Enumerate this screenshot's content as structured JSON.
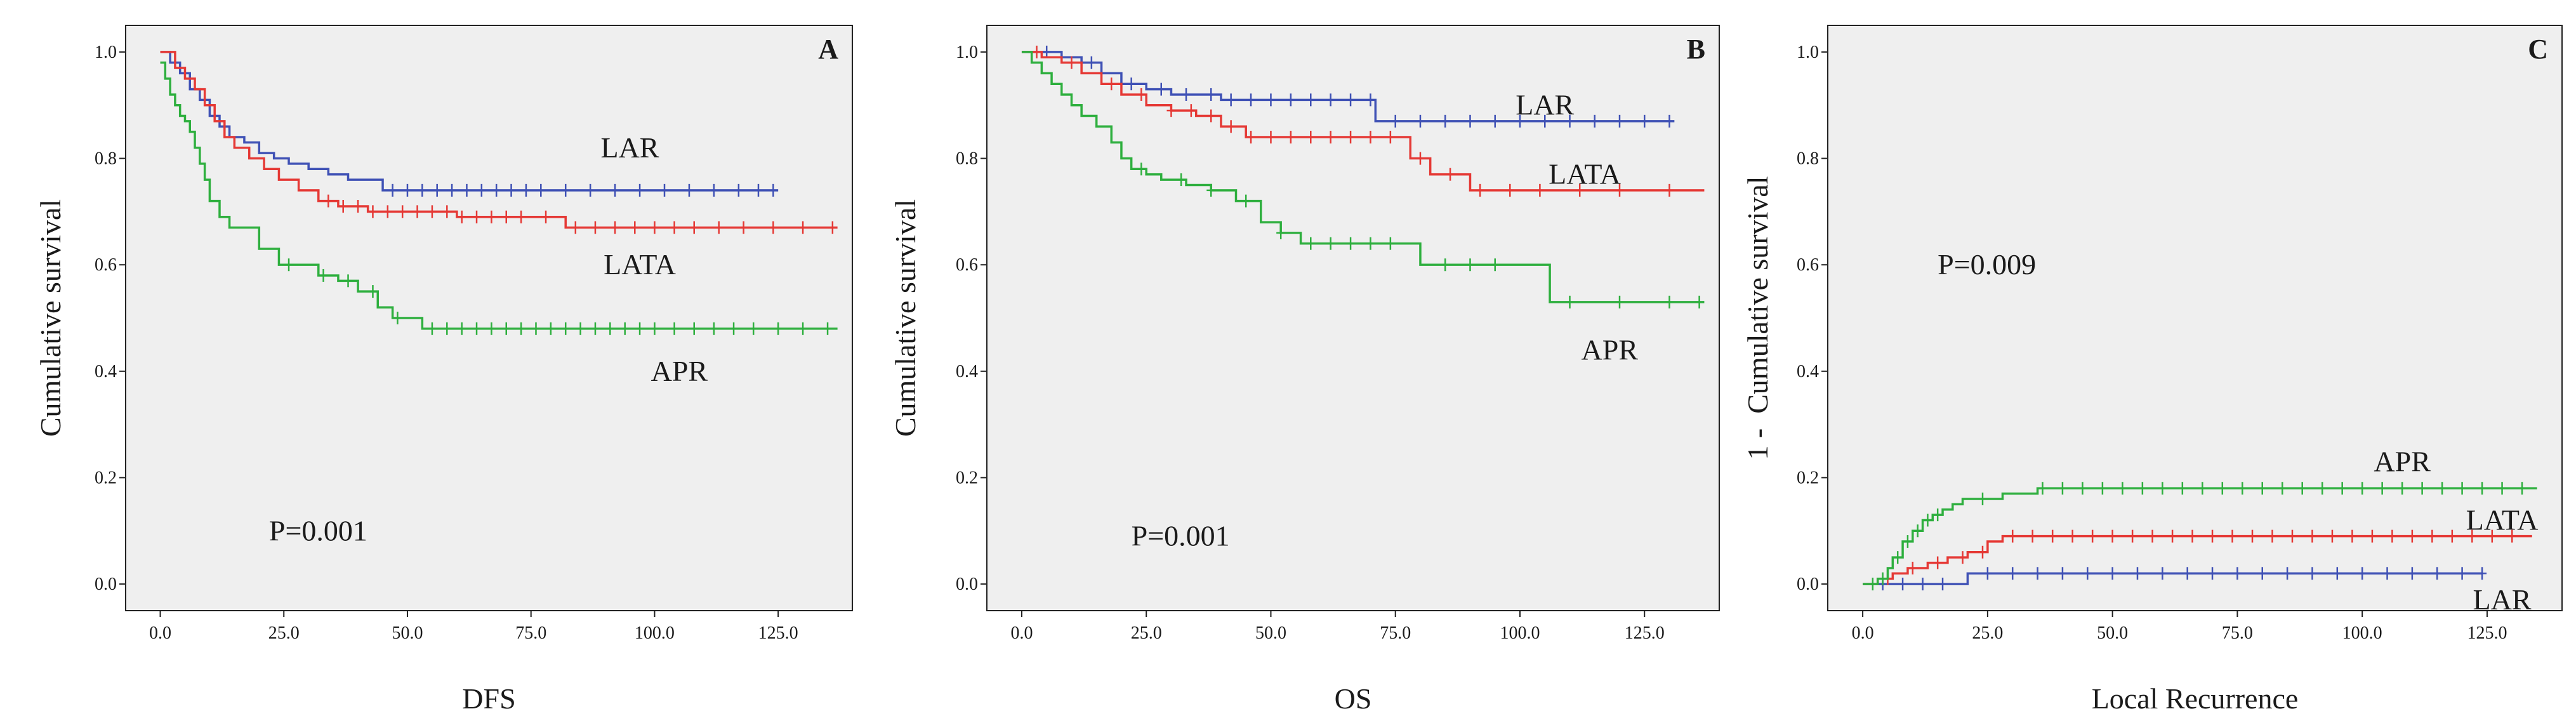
{
  "chart_data": [
    {
      "type": "line",
      "subtype": "kaplan-meier",
      "panel_label": "A",
      "xlabel": "DFS",
      "ylabel": "Cumulative survival",
      "xlim": [
        -7,
        140
      ],
      "ylim": [
        -0.05,
        1.05
      ],
      "x_ticks": [
        0,
        25,
        50,
        75,
        100,
        125
      ],
      "x_tick_labels": [
        "0.0",
        "25.0",
        "50.0",
        "75.0",
        "100.0",
        "125.0"
      ],
      "y_ticks": [
        0,
        0.2,
        0.4,
        0.6,
        0.8,
        1.0
      ],
      "y_tick_labels": [
        "0.0",
        "0.2",
        "0.4",
        "0.6",
        "0.8",
        "1.0"
      ],
      "annotation": {
        "text": "P=0.001",
        "x": 22,
        "y": 0.1
      },
      "series": [
        {
          "name": "LAR",
          "color": "#3f51b5",
          "label_pos": [
            95,
            0.82
          ],
          "x": [
            0,
            2,
            4,
            6,
            8,
            10,
            12,
            14,
            17,
            20,
            23,
            26,
            30,
            34,
            38,
            45,
            125
          ],
          "y": [
            1.0,
            0.98,
            0.96,
            0.93,
            0.91,
            0.88,
            0.86,
            0.84,
            0.83,
            0.81,
            0.8,
            0.79,
            0.78,
            0.77,
            0.76,
            0.74,
            0.74
          ],
          "censor_x": [
            47,
            50,
            53,
            56,
            59,
            62,
            65,
            68,
            71,
            74,
            77,
            82,
            87,
            92,
            97,
            102,
            107,
            112,
            117,
            121,
            124
          ]
        },
        {
          "name": "LATA",
          "color": "#e53935",
          "label_pos": [
            97,
            0.6
          ],
          "x": [
            0,
            3,
            5,
            7,
            9,
            11,
            13,
            15,
            18,
            21,
            24,
            28,
            32,
            36,
            42,
            50,
            60,
            75,
            82,
            137
          ],
          "y": [
            1.0,
            0.97,
            0.95,
            0.93,
            0.9,
            0.87,
            0.84,
            0.82,
            0.8,
            0.78,
            0.76,
            0.74,
            0.72,
            0.71,
            0.7,
            0.7,
            0.69,
            0.69,
            0.67,
            0.67
          ],
          "censor_x": [
            34,
            37,
            40,
            43,
            46,
            49,
            52,
            55,
            58,
            61,
            64,
            67,
            70,
            73,
            78,
            84,
            88,
            92,
            96,
            100,
            104,
            108,
            113,
            118,
            124,
            130,
            136
          ]
        },
        {
          "name": "APR",
          "color": "#2eaf3e",
          "label_pos": [
            105,
            0.4
          ],
          "x": [
            0,
            1,
            2,
            3,
            4,
            5,
            6,
            7,
            8,
            9,
            10,
            12,
            14,
            17,
            20,
            24,
            28,
            32,
            36,
            40,
            44,
            47,
            50,
            53,
            137
          ],
          "y": [
            0.98,
            0.95,
            0.92,
            0.9,
            0.88,
            0.87,
            0.85,
            0.82,
            0.79,
            0.76,
            0.72,
            0.69,
            0.67,
            0.67,
            0.63,
            0.6,
            0.6,
            0.58,
            0.57,
            0.55,
            0.52,
            0.5,
            0.5,
            0.48,
            0.48
          ],
          "censor_x": [
            26,
            33,
            38,
            43,
            48,
            55,
            58,
            61,
            64,
            67,
            70,
            73,
            76,
            79,
            82,
            85,
            88,
            91,
            94,
            97,
            100,
            104,
            108,
            112,
            116,
            120,
            125,
            130,
            135
          ]
        }
      ]
    },
    {
      "type": "line",
      "subtype": "kaplan-meier",
      "panel_label": "B",
      "xlabel": "OS",
      "ylabel": "Cumulative survival",
      "xlim": [
        -7,
        140
      ],
      "ylim": [
        -0.05,
        1.05
      ],
      "x_ticks": [
        0,
        25,
        50,
        75,
        100,
        125
      ],
      "x_tick_labels": [
        "0.0",
        "25.0",
        "50.0",
        "75.0",
        "100.0",
        "125.0"
      ],
      "y_ticks": [
        0,
        0.2,
        0.4,
        0.6,
        0.8,
        1.0
      ],
      "y_tick_labels": [
        "0.0",
        "0.2",
        "0.4",
        "0.6",
        "0.8",
        "1.0"
      ],
      "annotation": {
        "text": "P=0.001",
        "x": 22,
        "y": 0.09
      },
      "series": [
        {
          "name": "LAR",
          "color": "#3f51b5",
          "label_pos": [
            105,
            0.9
          ],
          "x": [
            0,
            8,
            12,
            16,
            20,
            25,
            30,
            35,
            40,
            70,
            71,
            131
          ],
          "y": [
            1.0,
            0.99,
            0.98,
            0.96,
            0.94,
            0.93,
            0.92,
            0.92,
            0.91,
            0.91,
            0.87,
            0.87
          ],
          "censor_x": [
            5,
            14,
            22,
            28,
            33,
            38,
            42,
            46,
            50,
            54,
            58,
            62,
            66,
            70,
            75,
            80,
            85,
            90,
            95,
            100,
            105,
            110,
            115,
            120,
            125,
            130
          ]
        },
        {
          "name": "LATA",
          "color": "#e53935",
          "label_pos": [
            113,
            0.77
          ],
          "x": [
            0,
            4,
            8,
            12,
            16,
            20,
            25,
            30,
            35,
            40,
            45,
            75,
            78,
            82,
            90,
            137
          ],
          "y": [
            1.0,
            0.99,
            0.98,
            0.96,
            0.94,
            0.92,
            0.9,
            0.89,
            0.88,
            0.86,
            0.84,
            0.84,
            0.8,
            0.77,
            0.74,
            0.74
          ],
          "censor_x": [
            3,
            10,
            18,
            24,
            30,
            34,
            38,
            42,
            46,
            50,
            54,
            58,
            62,
            66,
            70,
            74,
            80,
            86,
            92,
            98,
            104,
            112,
            120,
            130
          ]
        },
        {
          "name": "APR",
          "color": "#2eaf3e",
          "label_pos": [
            118,
            0.44
          ],
          "x": [
            0,
            2,
            4,
            6,
            8,
            10,
            12,
            15,
            18,
            20,
            22,
            25,
            28,
            33,
            38,
            43,
            48,
            52,
            56,
            80,
            106,
            137
          ],
          "y": [
            1.0,
            0.98,
            0.96,
            0.94,
            0.92,
            0.9,
            0.88,
            0.86,
            0.83,
            0.8,
            0.78,
            0.77,
            0.76,
            0.75,
            0.74,
            0.72,
            0.68,
            0.66,
            0.64,
            0.6,
            0.53,
            0.53
          ],
          "censor_x": [
            24,
            32,
            38,
            45,
            52,
            58,
            62,
            66,
            70,
            74,
            85,
            90,
            95,
            110,
            120,
            130,
            136
          ]
        }
      ]
    },
    {
      "type": "line",
      "subtype": "kaplan-meier",
      "panel_label": "C",
      "xlabel": "Local Recurrence",
      "ylabel": "1 -  Cumulative survival",
      "xlim": [
        -7,
        140
      ],
      "ylim": [
        -0.05,
        1.05
      ],
      "x_ticks": [
        0,
        25,
        50,
        75,
        100,
        125
      ],
      "x_tick_labels": [
        "0.0",
        "25.0",
        "50.0",
        "75.0",
        "100.0",
        "125.0"
      ],
      "y_ticks": [
        0,
        0.2,
        0.4,
        0.6,
        0.8,
        1.0
      ],
      "y_tick_labels": [
        "0.0",
        "0.2",
        "0.4",
        "0.6",
        "0.8",
        "1.0"
      ],
      "annotation": {
        "text": "P=0.009",
        "x": 15,
        "y": 0.6
      },
      "series": [
        {
          "name": "LAR",
          "color": "#3f51b5",
          "label_pos": [
            128,
            -0.03
          ],
          "x": [
            0,
            20,
            21,
            124
          ],
          "y": [
            0.0,
            0.0,
            0.02,
            0.02
          ],
          "censor_x": [
            4,
            8,
            12,
            16,
            25,
            30,
            35,
            40,
            45,
            50,
            55,
            60,
            65,
            70,
            75,
            80,
            85,
            90,
            95,
            100,
            105,
            110,
            115,
            120,
            124
          ]
        },
        {
          "name": "LATA",
          "color": "#e53935",
          "label_pos": [
            128,
            0.12
          ],
          "x": [
            0,
            3,
            6,
            9,
            13,
            17,
            21,
            25,
            28,
            134
          ],
          "y": [
            0.0,
            0.01,
            0.02,
            0.03,
            0.04,
            0.05,
            0.06,
            0.08,
            0.09,
            0.09
          ],
          "censor_x": [
            5,
            10,
            15,
            20,
            24,
            30,
            34,
            38,
            42,
            46,
            50,
            54,
            58,
            62,
            66,
            70,
            74,
            78,
            82,
            86,
            90,
            94,
            98,
            102,
            106,
            110,
            114,
            118,
            122,
            126,
            130
          ]
        },
        {
          "name": "APR",
          "color": "#2eaf3e",
          "label_pos": [
            108,
            0.23
          ],
          "x": [
            0,
            3,
            5,
            6,
            8,
            10,
            12,
            14,
            16,
            18,
            20,
            25,
            28,
            32,
            35,
            135
          ],
          "y": [
            0.0,
            0.01,
            0.03,
            0.05,
            0.08,
            0.1,
            0.12,
            0.13,
            0.14,
            0.15,
            0.16,
            0.16,
            0.17,
            0.17,
            0.18,
            0.18
          ],
          "censor_x": [
            2,
            4,
            7,
            9,
            11,
            13,
            15,
            24,
            36,
            40,
            44,
            48,
            52,
            56,
            60,
            64,
            68,
            72,
            76,
            80,
            84,
            88,
            92,
            96,
            100,
            104,
            108,
            112,
            116,
            120,
            124,
            128,
            132
          ]
        }
      ]
    }
  ]
}
